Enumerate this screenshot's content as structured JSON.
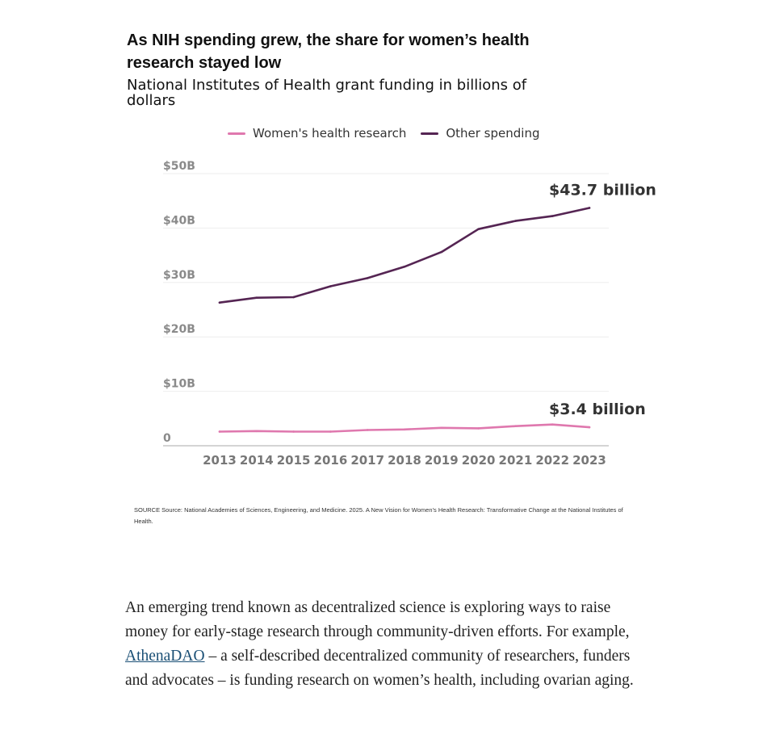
{
  "chart_data": {
    "type": "line",
    "title": "As NIH spending grew, the share for women’s health research stayed low",
    "subtitle": "National Institutes of Health grant funding in billions of dollars",
    "x": [
      2013,
      2014,
      2015,
      2016,
      2017,
      2018,
      2019,
      2020,
      2021,
      2022,
      2023
    ],
    "y_ticks": [
      "0",
      "$10B",
      "$20B",
      "$30B",
      "$40B",
      "$50B"
    ],
    "ylim": [
      0,
      50
    ],
    "grid": true,
    "legend_position": "top",
    "series": [
      {
        "name": "Women's health research",
        "color": "#df78ae",
        "values": [
          2.6,
          2.7,
          2.6,
          2.6,
          2.9,
          3.0,
          3.3,
          3.2,
          3.6,
          3.9,
          3.4
        ],
        "end_label": "$3.4 billion"
      },
      {
        "name": "Other spending",
        "color": "#552553",
        "values": [
          26.3,
          27.2,
          27.3,
          29.3,
          30.8,
          32.9,
          35.6,
          39.8,
          41.3,
          42.2,
          43.7
        ],
        "end_label": "$43.7 billion"
      }
    ]
  },
  "source": "SOURCE Source: National Academies of Sciences, Engineering, and Medicine. 2025. A New Vision for Women’s Health Research: Transformative Change at the National Institutes of Health.",
  "article": {
    "text_before": "An emerging trend known as decentralized science is exploring ways to raise money for early-stage research through community-driven efforts. For example, ",
    "link_text": "AthenaDAO",
    "text_after": " – a self-described decentralized community of researchers, funders and advocates – is funding research on women’s health, including ovarian aging."
  }
}
